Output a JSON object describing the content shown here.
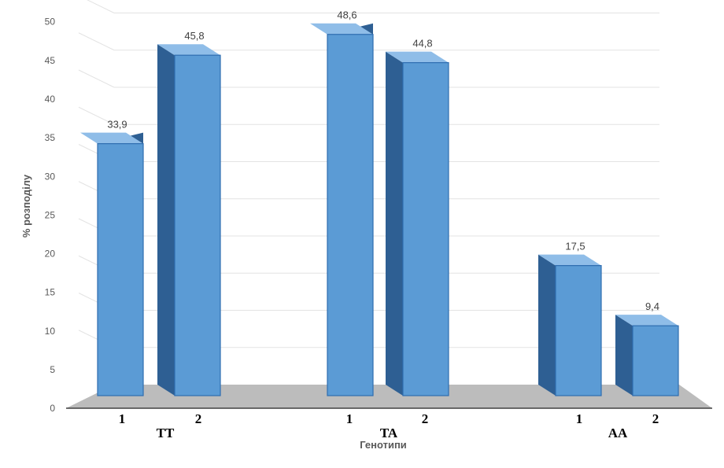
{
  "chart_data": {
    "type": "bar",
    "ylabel": "% розподілу",
    "xlabel": "Генотипи",
    "ylim": [
      0,
      50
    ],
    "yticks": [
      0,
      5,
      10,
      15,
      20,
      25,
      30,
      35,
      40,
      45,
      50
    ],
    "groups": [
      {
        "name": "TT",
        "bars": [
          {
            "label": "1",
            "value": 33.9,
            "value_label": "33,9"
          },
          {
            "label": "2",
            "value": 45.8,
            "value_label": "45,8"
          }
        ]
      },
      {
        "name": "TA",
        "bars": [
          {
            "label": "1",
            "value": 48.6,
            "value_label": "48,6"
          },
          {
            "label": "2",
            "value": 44.8,
            "value_label": "44,8"
          }
        ]
      },
      {
        "name": "AA",
        "bars": [
          {
            "label": "1",
            "value": 17.5,
            "value_label": "17,5"
          },
          {
            "label": "2",
            "value": 9.4,
            "value_label": "9,4"
          }
        ]
      }
    ],
    "grid": true,
    "legend": "none"
  },
  "colors": {
    "bar_front": "#5b9bd5",
    "bar_side": "#2e5f93",
    "bar_top": "#8fbde8",
    "floor": "#a6a6a6",
    "grid": "#e3e3e3",
    "axis_text": "#595959"
  }
}
